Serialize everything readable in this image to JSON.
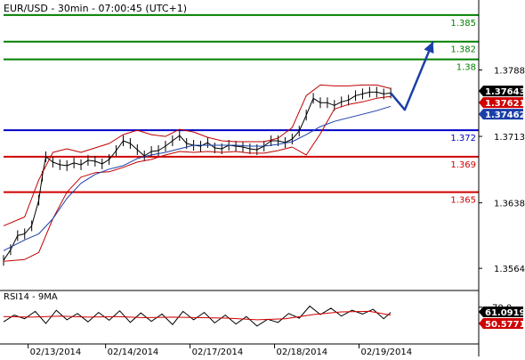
{
  "chart_data": {
    "type": "line",
    "title": "EUR/USD - 30min - 07:00:45 (UTC+1)",
    "price_axis": {
      "ylim": [
        1.354,
        1.3865
      ],
      "ticks": [
        {
          "value": 1.3788,
          "label": "1.3788"
        },
        {
          "value": 1.3713,
          "label": "1.3713"
        },
        {
          "value": 1.3638,
          "label": "1.3638"
        },
        {
          "value": 1.3564,
          "label": "1.3564"
        }
      ]
    },
    "x_axis": {
      "labels": [
        {
          "x": 8,
          "label": "02/13/2014"
        },
        {
          "x": 30,
          "label": "02/14/2014"
        },
        {
          "x": 54,
          "label": "02/17/2014"
        },
        {
          "x": 78,
          "label": "02/18/2014"
        },
        {
          "x": 102,
          "label": "02/19/2014"
        }
      ],
      "xlim": [
        0,
        135
      ]
    },
    "horizontal_levels": [
      {
        "value": 1.385,
        "label": "1.385",
        "color": "#008000"
      },
      {
        "value": 1.382,
        "label": "1.382",
        "color": "#008000"
      },
      {
        "value": 1.38,
        "label": "1.38",
        "color": "#008000"
      },
      {
        "value": 1.372,
        "label": "1.372",
        "color": "#0000c8"
      },
      {
        "value": 1.369,
        "label": "1.369",
        "color": "#d00000"
      },
      {
        "value": 1.365,
        "label": "1.365",
        "color": "#d00000"
      }
    ],
    "price_tags": [
      {
        "value": 1.37643,
        "label": "1.37643",
        "color": "#000000"
      },
      {
        "value": 1.37621,
        "label": "1.37621",
        "color": "#d00000"
      },
      {
        "value": 1.37462,
        "label": "1.37462",
        "color": "#1a3fa8"
      }
    ],
    "series": [
      {
        "kind": "price",
        "color": "#000000",
        "points": [
          [
            0,
            1.3573
          ],
          [
            2,
            1.3585
          ],
          [
            4,
            1.3601
          ],
          [
            6,
            1.3603
          ],
          [
            8,
            1.3612
          ],
          [
            10,
            1.3641
          ],
          [
            11,
            1.3668
          ],
          [
            12,
            1.369
          ],
          [
            14,
            1.3684
          ],
          [
            16,
            1.3681
          ],
          [
            18,
            1.368
          ],
          [
            20,
            1.3683
          ],
          [
            22,
            1.3681
          ],
          [
            24,
            1.3686
          ],
          [
            26,
            1.3685
          ],
          [
            28,
            1.3682
          ],
          [
            30,
            1.3687
          ],
          [
            32,
            1.3697
          ],
          [
            34,
            1.3708
          ],
          [
            36,
            1.3705
          ],
          [
            38,
            1.3698
          ],
          [
            40,
            1.3691
          ],
          [
            42,
            1.3696
          ],
          [
            44,
            1.3697
          ],
          [
            46,
            1.3702
          ],
          [
            48,
            1.3708
          ],
          [
            50,
            1.3714
          ],
          [
            52,
            1.3705
          ],
          [
            54,
            1.3703
          ],
          [
            56,
            1.3702
          ],
          [
            58,
            1.3706
          ],
          [
            60,
            1.37
          ],
          [
            62,
            1.3699
          ],
          [
            64,
            1.3703
          ],
          [
            66,
            1.3702
          ],
          [
            68,
            1.3701
          ],
          [
            70,
            1.3699
          ],
          [
            72,
            1.3698
          ],
          [
            74,
            1.3702
          ],
          [
            76,
            1.3708
          ],
          [
            78,
            1.3708
          ],
          [
            80,
            1.3706
          ],
          [
            82,
            1.371
          ],
          [
            84,
            1.3719
          ],
          [
            86,
            1.3737
          ],
          [
            88,
            1.3756
          ],
          [
            90,
            1.3751
          ],
          [
            92,
            1.3751
          ],
          [
            94,
            1.3748
          ],
          [
            96,
            1.3752
          ],
          [
            98,
            1.3754
          ],
          [
            100,
            1.3759
          ],
          [
            102,
            1.3761
          ],
          [
            104,
            1.3763
          ],
          [
            106,
            1.3763
          ],
          [
            108,
            1.3761
          ],
          [
            110,
            1.3762
          ]
        ]
      },
      {
        "kind": "bollinger_upper",
        "color": "#c00000",
        "points": [
          [
            0,
            1.3612
          ],
          [
            6,
            1.3622
          ],
          [
            10,
            1.3664
          ],
          [
            14,
            1.3695
          ],
          [
            18,
            1.3699
          ],
          [
            22,
            1.3695
          ],
          [
            26,
            1.37
          ],
          [
            30,
            1.3705
          ],
          [
            34,
            1.3715
          ],
          [
            38,
            1.372
          ],
          [
            42,
            1.3715
          ],
          [
            46,
            1.3713
          ],
          [
            50,
            1.3721
          ],
          [
            54,
            1.3718
          ],
          [
            58,
            1.3712
          ],
          [
            62,
            1.3708
          ],
          [
            66,
            1.3707
          ],
          [
            70,
            1.3707
          ],
          [
            74,
            1.3707
          ],
          [
            78,
            1.3711
          ],
          [
            82,
            1.3723
          ],
          [
            86,
            1.3759
          ],
          [
            90,
            1.3771
          ],
          [
            94,
            1.377
          ],
          [
            98,
            1.377
          ],
          [
            102,
            1.3771
          ],
          [
            106,
            1.3771
          ],
          [
            110,
            1.3767
          ]
        ]
      },
      {
        "kind": "bollinger_lower",
        "color": "#c00000",
        "points": [
          [
            0,
            1.3572
          ],
          [
            6,
            1.3574
          ],
          [
            10,
            1.3582
          ],
          [
            14,
            1.362
          ],
          [
            18,
            1.365
          ],
          [
            22,
            1.3667
          ],
          [
            26,
            1.3672
          ],
          [
            30,
            1.3673
          ],
          [
            34,
            1.3678
          ],
          [
            38,
            1.3684
          ],
          [
            42,
            1.3687
          ],
          [
            46,
            1.3692
          ],
          [
            50,
            1.3696
          ],
          [
            54,
            1.3695
          ],
          [
            58,
            1.3696
          ],
          [
            62,
            1.3695
          ],
          [
            66,
            1.3696
          ],
          [
            70,
            1.3694
          ],
          [
            74,
            1.3694
          ],
          [
            78,
            1.3697
          ],
          [
            82,
            1.3701
          ],
          [
            86,
            1.3692
          ],
          [
            90,
            1.3716
          ],
          [
            94,
            1.3744
          ],
          [
            98,
            1.3749
          ],
          [
            102,
            1.3752
          ],
          [
            106,
            1.3756
          ],
          [
            110,
            1.3758
          ]
        ]
      },
      {
        "kind": "moving_average",
        "color": "#1a3fa8",
        "points": [
          [
            0,
            1.3584
          ],
          [
            6,
            1.3596
          ],
          [
            10,
            1.3603
          ],
          [
            14,
            1.362
          ],
          [
            18,
            1.3643
          ],
          [
            22,
            1.366
          ],
          [
            26,
            1.367
          ],
          [
            30,
            1.3676
          ],
          [
            34,
            1.368
          ],
          [
            38,
            1.3688
          ],
          [
            42,
            1.3692
          ],
          [
            46,
            1.3695
          ],
          [
            50,
            1.3699
          ],
          [
            54,
            1.3703
          ],
          [
            58,
            1.3703
          ],
          [
            62,
            1.3703
          ],
          [
            66,
            1.3703
          ],
          [
            70,
            1.3702
          ],
          [
            74,
            1.3702
          ],
          [
            78,
            1.3704
          ],
          [
            82,
            1.3707
          ],
          [
            86,
            1.3715
          ],
          [
            90,
            1.3724
          ],
          [
            94,
            1.373
          ],
          [
            98,
            1.3734
          ],
          [
            102,
            1.3738
          ],
          [
            106,
            1.3742
          ],
          [
            110,
            1.3747
          ]
        ]
      },
      {
        "kind": "forecast_arrow",
        "color": "#1a3fa8",
        "points": [
          [
            110,
            1.3762
          ],
          [
            114,
            1.3743
          ],
          [
            122,
            1.382
          ]
        ]
      }
    ],
    "rsi_panel": {
      "title": "RSI14 - 9MA",
      "ylim": [
        0,
        100
      ],
      "ticks": [
        {
          "value": 70,
          "label": "70.0"
        }
      ],
      "price_tags": [
        {
          "value": 61.0919,
          "label": "61.0919",
          "color": "#000000"
        },
        {
          "value": 50.5771,
          "label": "50.5771",
          "color": "#d00000"
        }
      ],
      "series": [
        {
          "kind": "rsi",
          "color": "#000000",
          "points": [
            [
              0,
              42
            ],
            [
              3,
              55
            ],
            [
              6,
              48
            ],
            [
              9,
              62
            ],
            [
              12,
              39
            ],
            [
              15,
              64
            ],
            [
              18,
              46
            ],
            [
              21,
              58
            ],
            [
              24,
              42
            ],
            [
              27,
              60
            ],
            [
              30,
              45
            ],
            [
              33,
              63
            ],
            [
              36,
              41
            ],
            [
              39,
              59
            ],
            [
              42,
              43
            ],
            [
              45,
              57
            ],
            [
              48,
              37
            ],
            [
              51,
              62
            ],
            [
              54,
              46
            ],
            [
              57,
              60
            ],
            [
              60,
              40
            ],
            [
              63,
              55
            ],
            [
              66,
              38
            ],
            [
              69,
              52
            ],
            [
              72,
              34
            ],
            [
              75,
              47
            ],
            [
              78,
              41
            ],
            [
              81,
              58
            ],
            [
              84,
              49
            ],
            [
              87,
              72
            ],
            [
              90,
              56
            ],
            [
              93,
              68
            ],
            [
              96,
              53
            ],
            [
              99,
              64
            ],
            [
              102,
              57
            ],
            [
              105,
              66
            ],
            [
              108,
              48
            ],
            [
              110,
              60
            ]
          ]
        },
        {
          "kind": "rsi_ma",
          "color": "#d00000",
          "points": [
            [
              0,
              52
            ],
            [
              8,
              51
            ],
            [
              16,
              53
            ],
            [
              24,
              51
            ],
            [
              32,
              52
            ],
            [
              40,
              50
            ],
            [
              48,
              51
            ],
            [
              56,
              50
            ],
            [
              64,
              49
            ],
            [
              72,
              46
            ],
            [
              80,
              48
            ],
            [
              88,
              56
            ],
            [
              96,
              61
            ],
            [
              104,
              62
            ],
            [
              110,
              55
            ]
          ]
        }
      ]
    }
  }
}
